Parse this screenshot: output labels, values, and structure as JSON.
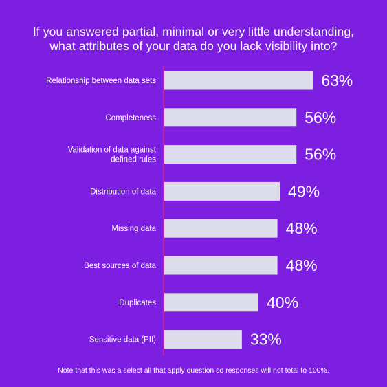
{
  "title": {
    "line1": "If you answered partial, minimal or very little understanding,",
    "line2": "what attributes of your data do you lack visibility into?"
  },
  "note": "Note that this was a select all that apply question so responses will not total to 100%.",
  "colors": {
    "background": "#7d1fe0",
    "bar": "#dcdcea",
    "axis": "#e0208c",
    "text": "#ffffff"
  },
  "chart_data": {
    "type": "bar",
    "orientation": "horizontal",
    "categories": [
      [
        "Relationship between data sets"
      ],
      [
        "Completeness"
      ],
      [
        "Validation of data against",
        "defined rules"
      ],
      [
        "Distribution of data"
      ],
      [
        "Missing data"
      ],
      [
        "Best sources of data"
      ],
      [
        "Duplicates"
      ],
      [
        "Sensitive data (PII)"
      ]
    ],
    "values": [
      63,
      56,
      56,
      49,
      48,
      48,
      40,
      33
    ],
    "value_labels": [
      "63%",
      "56%",
      "56%",
      "49%",
      "48%",
      "48%",
      "40%",
      "33%"
    ],
    "xlim": [
      0,
      100
    ],
    "grid": false,
    "legend": "none"
  }
}
